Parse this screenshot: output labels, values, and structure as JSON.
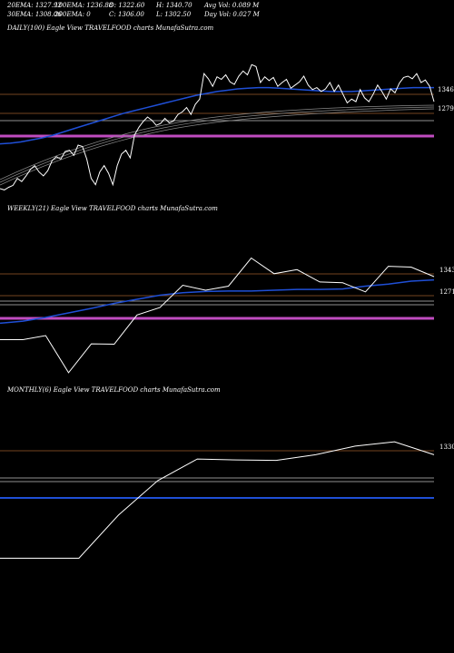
{
  "header": {
    "row1": [
      "20EMA: 1327.92",
      "100EMA: 1236.88",
      "O: 1322.60",
      "H: 1340.70",
      "Avg Vol: 0.089 M"
    ],
    "row2": [
      "30EMA: 1308.06",
      "200EMA: 0",
      "C: 1306.00",
      "L: 1302.50",
      "Day Vol: 0.027 M"
    ]
  },
  "colors": {
    "background": "#000000",
    "price": "#ffffff",
    "ema": "#1f4fd6",
    "support": "#c04cc0",
    "level_line": "#9a5a2a",
    "ema_band": "#bfbfbf"
  },
  "chart_data": [
    {
      "type": "line",
      "title": "DAILY(100) Eagle  View  TRAVELFOOD charts MunafaSutra.com",
      "level_labels": [
        "1346",
        "1279"
      ],
      "series": [
        {
          "values": [
            1170,
            1168,
            1172,
            1175,
            1186,
            1181,
            1190,
            1200,
            1206,
            1196,
            1190,
            1198,
            1214,
            1220,
            1216,
            1228,
            1230,
            1222,
            1238,
            1236,
            1216,
            1186,
            1176,
            1196,
            1206,
            1194,
            1176,
            1206,
            1224,
            1230,
            1218,
            1254,
            1266,
            1275,
            1282,
            1277,
            1269,
            1272,
            1280,
            1273,
            1276,
            1286,
            1290,
            1297,
            1286,
            1302,
            1310,
            1350,
            1342,
            1330,
            1345,
            1341,
            1348,
            1337,
            1333,
            1346,
            1354,
            1348,
            1364,
            1361,
            1336,
            1345,
            1339,
            1344,
            1330,
            1336,
            1341,
            1327,
            1332,
            1337,
            1346,
            1332,
            1325,
            1328,
            1322,
            1326,
            1336,
            1322,
            1332,
            1318,
            1304,
            1310,
            1306,
            1325,
            1312,
            1306,
            1318,
            1332,
            1322,
            1310,
            1326,
            1320,
            1335,
            1344,
            1346,
            1342,
            1350,
            1336,
            1340,
            1330,
            1306
          ]
        },
        {
          "values": [
            1240,
            1241,
            1243,
            1246,
            1249,
            1253,
            1258,
            1263,
            1268,
            1273,
            1278,
            1283,
            1288,
            1292,
            1296,
            1300,
            1304,
            1308,
            1312,
            1316,
            1319,
            1322,
            1324,
            1326,
            1327,
            1328,
            1328,
            1327,
            1326,
            1325,
            1324,
            1323,
            1322,
            1322,
            1322,
            1323,
            1324,
            1325,
            1326,
            1327,
            1328,
            1328,
            1328
          ]
        }
      ]
    },
    {
      "type": "line",
      "title": "WEEKLY(21) Eagle  View  TRAVELFOOD charts MunafaSutra.com",
      "level_labels": [
        "1343",
        "1271"
      ],
      "series": [
        {
          "values": [
            1140,
            1140,
            1150,
            1060,
            1130,
            1129,
            1200,
            1218,
            1272,
            1260,
            1270,
            1338,
            1300,
            1310,
            1280,
            1278,
            1256,
            1318,
            1316,
            1293
          ]
        },
        {
          "values": [
            1180,
            1185,
            1194,
            1205,
            1216,
            1228,
            1238,
            1248,
            1254,
            1257,
            1258,
            1258,
            1260,
            1262,
            1262,
            1263,
            1270,
            1275,
            1282,
            1285
          ]
        }
      ]
    },
    {
      "type": "line",
      "title": "MONTHLY(6) Eagle  View  TRAVELFOOD charts MunafaSutra.com",
      "level_labels": [
        "1330"
      ],
      "series": [
        {
          "values": [
            1060,
            1060,
            1060,
            1160,
            1240,
            1290,
            1288,
            1287,
            1300,
            1320,
            1330,
            1300
          ]
        },
        {
          "values": [
            1222,
            1222
          ]
        }
      ]
    }
  ]
}
